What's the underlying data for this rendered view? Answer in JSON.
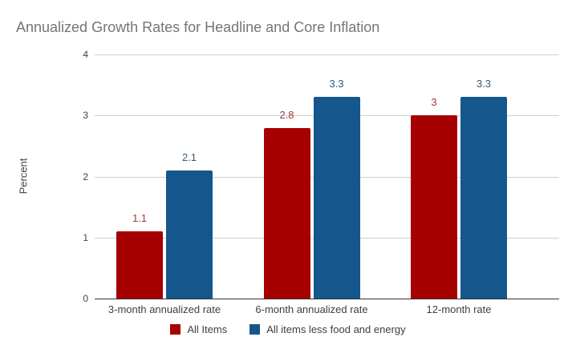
{
  "chart_data": {
    "type": "bar",
    "title": "Annualized Growth Rates for Headline and Core Inflation",
    "title_color": "#757575",
    "categories": [
      "3-month annualized rate",
      "6-month annualized rate",
      "12-month rate"
    ],
    "series": [
      {
        "name": "All Items",
        "color": "#a60000",
        "label_color": "#9e3a3a",
        "values": [
          1.1,
          2.8,
          3
        ]
      },
      {
        "name": "All items less food and energy",
        "color": "#15578c",
        "label_color": "#2f5a7d",
        "values": [
          2.1,
          3.3,
          3.3
        ]
      }
    ],
    "xlabel": "",
    "ylabel": "Percent",
    "ylim": [
      0,
      4
    ],
    "yticks": [
      0,
      1,
      2,
      3,
      4
    ],
    "grid": true,
    "gridline_color": "#cfcfcf",
    "axis_line_color": "#333333",
    "legend_position": "bottom"
  }
}
